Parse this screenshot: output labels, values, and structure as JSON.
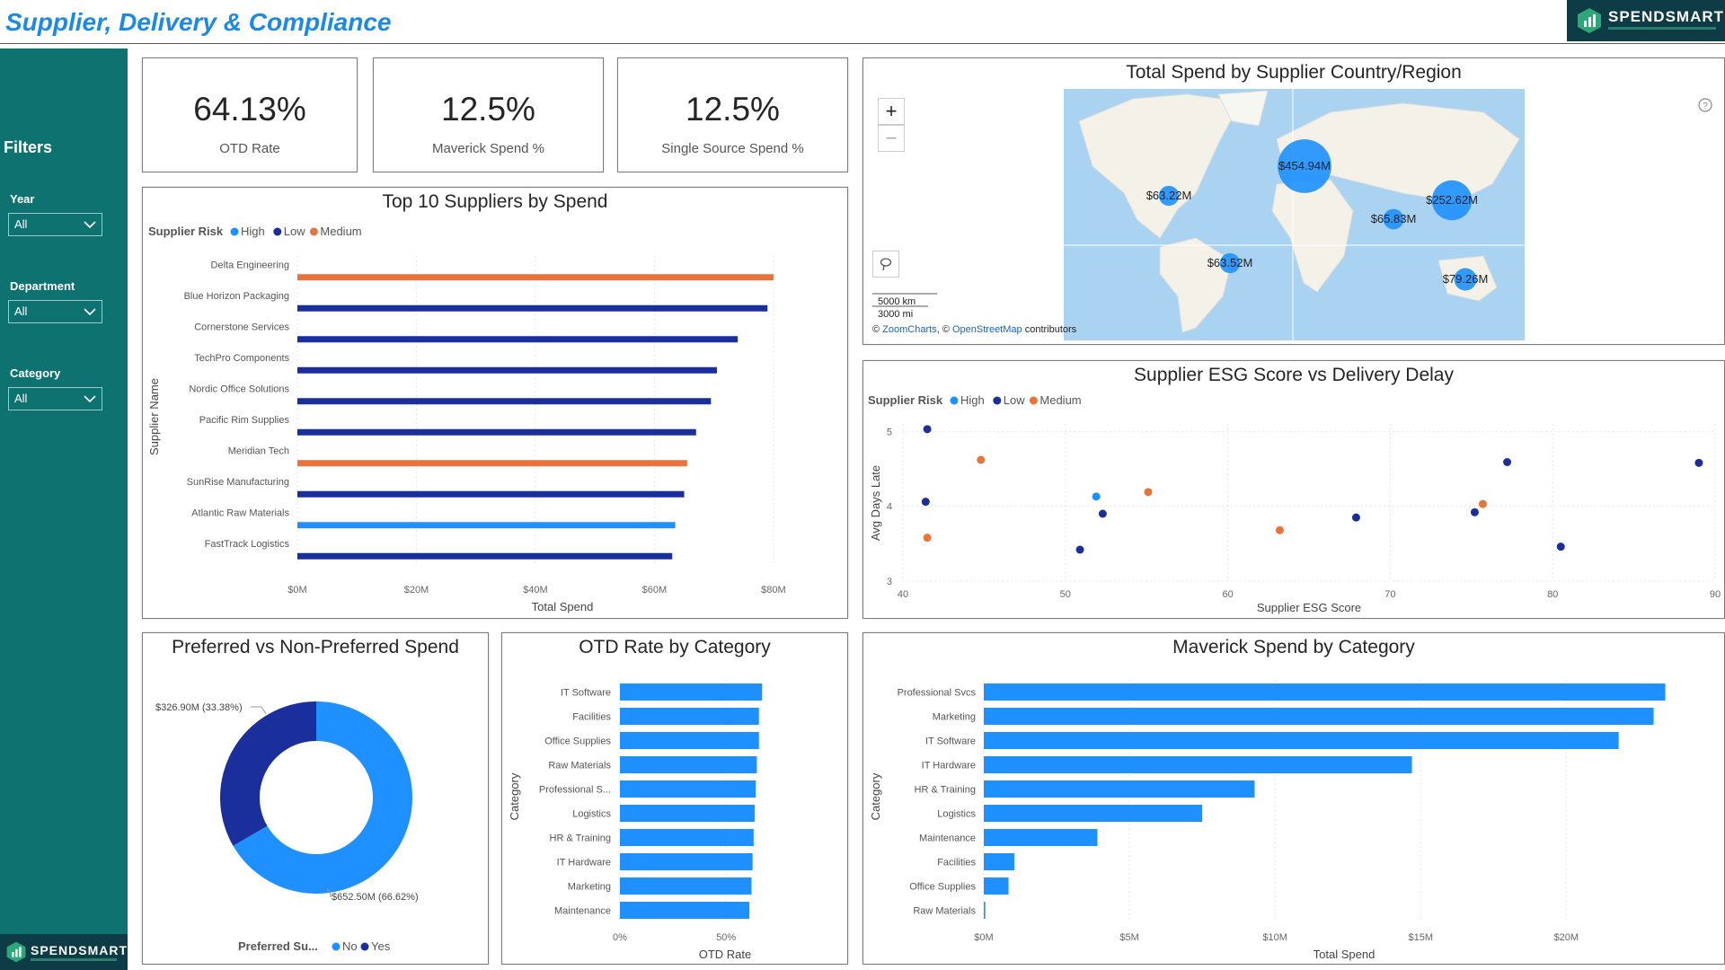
{
  "header": {
    "title": "Supplier, Delivery & Compliance",
    "logo_text": "SPENDSMART"
  },
  "sidebar": {
    "heading": "Filters",
    "filters": [
      {
        "label": "Year",
        "value": "All"
      },
      {
        "label": "Department",
        "value": "All"
      },
      {
        "label": "Category",
        "value": "All"
      }
    ],
    "logo_text": "SPENDSMART"
  },
  "kpis": [
    {
      "value": "64.13%",
      "label": "OTD Rate"
    },
    {
      "value": "12.5%",
      "label": "Maverick Spend %"
    },
    {
      "value": "12.5%",
      "label": "Single Source Spend %"
    }
  ],
  "colors": {
    "high": "#1e90ff",
    "low": "#1a2f9c",
    "medium": "#e8743b",
    "bar": "#1e90ff",
    "teal": "#0e7270"
  },
  "map": {
    "title": "Total Spend by Supplier Country/Region",
    "zoom_in": "+",
    "zoom_out": "−",
    "scale_km": "5000 km",
    "scale_mi": "3000 mi",
    "attribution_prefix": "©",
    "attribution_zoomcharts": "ZoomCharts",
    "attribution_sep": ", ©",
    "attribution_osm": "OpenStreetMap",
    "attribution_suffix": "contributors",
    "help_icon": "question-icon",
    "bubbles": [
      {
        "label": "$454.94M",
        "value": 454.94
      },
      {
        "label": "$252.62M",
        "value": 252.62
      },
      {
        "label": "$63.22M",
        "value": 63.22
      },
      {
        "label": "$65.83M",
        "value": 65.83
      },
      {
        "label": "$63.52M",
        "value": 63.52
      },
      {
        "label": "$79.26M",
        "value": 79.26
      }
    ]
  },
  "chart_data": [
    {
      "id": "top10",
      "type": "bar",
      "title": "Top 10 Suppliers by Spend",
      "legend_title": "Supplier Risk",
      "legend": [
        "High",
        "Low",
        "Medium"
      ],
      "xlabel": "Total Spend",
      "ylabel": "Supplier Name",
      "xlim": [
        0,
        85
      ],
      "xticks": [
        "$0M",
        "$20M",
        "$40M",
        "$60M",
        "$80M"
      ],
      "categories": [
        "Delta Engineering",
        "Blue Horizon Packaging",
        "Cornerstone Services",
        "TechPro Components",
        "Nordic Office Solutions",
        "Pacific Rim Supplies",
        "Meridian Tech",
        "SunRise Manufacturing",
        "Atlantic Raw Materials",
        "FastTrack Logistics"
      ],
      "values": [
        80,
        79,
        74,
        70.5,
        69.5,
        67,
        65.5,
        65,
        63.5,
        63
      ],
      "risk": [
        "Medium",
        "Low",
        "Low",
        "Low",
        "Low",
        "Low",
        "Medium",
        "Low",
        "High",
        "Low"
      ]
    },
    {
      "id": "esg",
      "type": "scatter",
      "title": "Supplier ESG Score vs Delivery Delay",
      "legend_title": "Supplier Risk",
      "legend": [
        "High",
        "Low",
        "Medium"
      ],
      "xlabel": "Supplier ESG Score",
      "ylabel": "Avg Days Late",
      "xlim": [
        40,
        90
      ],
      "ylim": [
        3,
        5.1
      ],
      "xticks": [
        "40",
        "50",
        "60",
        "70",
        "80",
        "90"
      ],
      "yticks": [
        "3",
        "4",
        "5"
      ],
      "points": [
        {
          "x": 41.5,
          "y": 5.03,
          "risk": "Low"
        },
        {
          "x": 44.8,
          "y": 4.62,
          "risk": "Medium"
        },
        {
          "x": 41.4,
          "y": 4.06,
          "risk": "Low"
        },
        {
          "x": 41.5,
          "y": 3.58,
          "risk": "Medium"
        },
        {
          "x": 51.9,
          "y": 4.13,
          "risk": "High"
        },
        {
          "x": 52.3,
          "y": 3.9,
          "risk": "Low"
        },
        {
          "x": 50.9,
          "y": 3.42,
          "risk": "Low"
        },
        {
          "x": 55.1,
          "y": 4.19,
          "risk": "Medium"
        },
        {
          "x": 63.2,
          "y": 3.68,
          "risk": "Medium"
        },
        {
          "x": 67.9,
          "y": 3.85,
          "risk": "Low"
        },
        {
          "x": 75.2,
          "y": 3.92,
          "risk": "Low"
        },
        {
          "x": 75.7,
          "y": 4.03,
          "risk": "Medium"
        },
        {
          "x": 77.2,
          "y": 4.59,
          "risk": "Low"
        },
        {
          "x": 80.5,
          "y": 3.46,
          "risk": "Low"
        },
        {
          "x": 89.0,
          "y": 4.58,
          "risk": "Low"
        }
      ]
    },
    {
      "id": "donut",
      "type": "pie",
      "title": "Preferred vs Non-Preferred Spend",
      "legend_title": "Preferred Su...",
      "legend": [
        "No",
        "Yes"
      ],
      "slices": [
        {
          "name": "No",
          "value": 652.5,
          "label": "$652.50M (66.62%)"
        },
        {
          "name": "Yes",
          "value": 326.9,
          "label": "$326.90M (33.38%)"
        }
      ]
    },
    {
      "id": "otd",
      "type": "bar",
      "title": "OTD Rate by Category",
      "xlabel": "OTD Rate",
      "ylabel": "Category",
      "xlim": [
        0,
        80
      ],
      "xticks": [
        "0%",
        "50%"
      ],
      "categories": [
        "IT Software",
        "Facilities",
        "Office Supplies",
        "Raw Materials",
        "Professional S...",
        "Logistics",
        "HR & Training",
        "IT Hardware",
        "Marketing",
        "Maintenance"
      ],
      "values": [
        67,
        65.5,
        65.5,
        64.5,
        64,
        63.5,
        63,
        62.5,
        62,
        61
      ]
    },
    {
      "id": "maverick",
      "type": "bar",
      "title": "Maverick Spend by Category",
      "xlabel": "Total Spend",
      "ylabel": "Category",
      "xlim": [
        0,
        24
      ],
      "xticks": [
        "$0M",
        "$5M",
        "$10M",
        "$15M",
        "$20M"
      ],
      "categories": [
        "Professional Svcs",
        "Marketing",
        "IT Software",
        "IT Hardware",
        "HR & Training",
        "Logistics",
        "Maintenance",
        "Facilities",
        "Office Supplies",
        "Raw Materials"
      ],
      "values": [
        23.4,
        23.0,
        21.8,
        14.7,
        9.3,
        7.5,
        3.9,
        1.05,
        0.85,
        0.05
      ]
    }
  ]
}
